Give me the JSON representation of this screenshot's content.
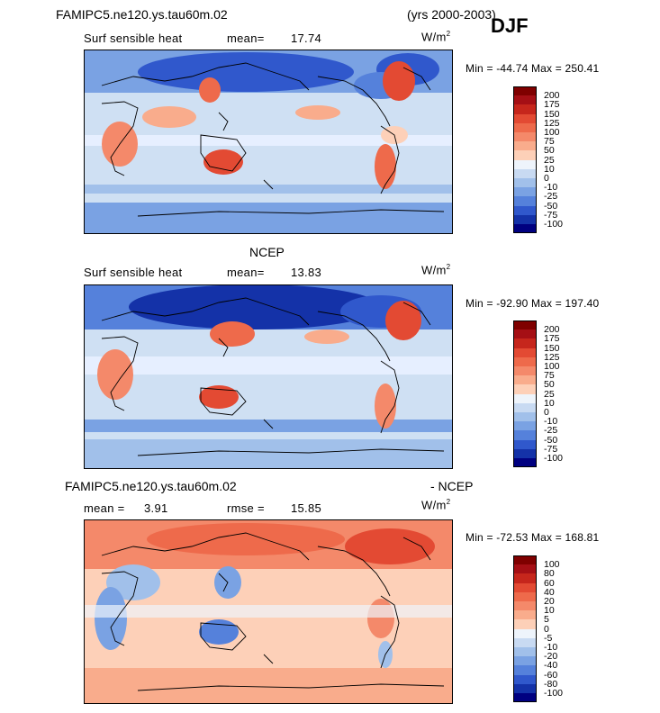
{
  "header": {
    "title_left": "FAMIPC5.ne120.ys.tau60m.02",
    "title_right": "(yrs 2000-2003)",
    "season": "DJF"
  },
  "panels": [
    {
      "id": "model",
      "top_title": "",
      "subtitle_left": "Surf sensible heat",
      "stat1_label": "mean=",
      "stat1_value": "17.74",
      "stat2_label": "",
      "stat2_value": "",
      "units_base": "W/m",
      "units_exp": "2",
      "minmax": "Min = -44.74  Max = 250.41",
      "colorbar_labels": [
        "200",
        "175",
        "150",
        "125",
        "100",
        "75",
        "50",
        "25",
        "10",
        "0",
        "-10",
        "-25",
        "-50",
        "-75",
        "-100"
      ],
      "colorbar_colors": [
        "#7f0000",
        "#a50f15",
        "#c6261c",
        "#e34a33",
        "#ee6a4b",
        "#f4896a",
        "#f9ac8c",
        "#fdd0b8",
        "#eef4fb",
        "#c8daf2",
        "#a1c0ea",
        "#7aa2e3",
        "#5581db",
        "#3058cc",
        "#1432a8",
        "#000080"
      ]
    },
    {
      "id": "obs",
      "top_title": "NCEP",
      "subtitle_left": "Surf sensible heat",
      "stat1_label": "mean=",
      "stat1_value": "13.83",
      "stat2_label": "",
      "stat2_value": "",
      "units_base": "W/m",
      "units_exp": "2",
      "minmax": "Min = -92.90  Max = 197.40",
      "colorbar_labels": [
        "200",
        "175",
        "150",
        "125",
        "100",
        "75",
        "50",
        "25",
        "10",
        "0",
        "-10",
        "-25",
        "-50",
        "-75",
        "-100"
      ],
      "colorbar_colors": [
        "#7f0000",
        "#a50f15",
        "#c6261c",
        "#e34a33",
        "#ee6a4b",
        "#f4896a",
        "#f9ac8c",
        "#fdd0b8",
        "#eef4fb",
        "#c8daf2",
        "#a1c0ea",
        "#7aa2e3",
        "#5581db",
        "#3058cc",
        "#1432a8",
        "#000080"
      ]
    },
    {
      "id": "diff",
      "top_title_left": "FAMIPC5.ne120.ys.tau60m.02",
      "top_title_right": "- NCEP",
      "subtitle_left": "",
      "stat1_label": "mean =",
      "stat1_value": "3.91",
      "stat2_label": "rmse =",
      "stat2_value": "15.85",
      "units_base": "W/m",
      "units_exp": "2",
      "minmax": "Min = -72.53  Max = 168.81",
      "colorbar_labels": [
        "100",
        "80",
        "60",
        "40",
        "20",
        "10",
        "5",
        "0",
        "-5",
        "-10",
        "-20",
        "-40",
        "-60",
        "-80",
        "-100"
      ],
      "colorbar_colors": [
        "#7f0000",
        "#a50f15",
        "#c6261c",
        "#e34a33",
        "#ee6a4b",
        "#f4896a",
        "#f9ac8c",
        "#fdd0b8",
        "#eef4fb",
        "#c8daf2",
        "#a1c0ea",
        "#7aa2e3",
        "#5581db",
        "#3058cc",
        "#1432a8",
        "#000080"
      ]
    }
  ],
  "chart_data": [
    {
      "type": "heatmap",
      "title": "Surf sensible heat",
      "subtitle": "FAMIPC5.ne120.ys.tau60m.02 (yrs 2000-2003) DJF",
      "mean": 17.74,
      "min": -44.74,
      "max": 250.41,
      "units": "W/m2",
      "levels": [
        -100,
        -75,
        -50,
        -25,
        -10,
        0,
        10,
        25,
        50,
        75,
        100,
        125,
        150,
        175,
        200
      ]
    },
    {
      "type": "heatmap",
      "title": "Surf sensible heat",
      "subtitle": "NCEP",
      "mean": 13.83,
      "min": -92.9,
      "max": 197.4,
      "units": "W/m2",
      "levels": [
        -100,
        -75,
        -50,
        -25,
        -10,
        0,
        10,
        25,
        50,
        75,
        100,
        125,
        150,
        175,
        200
      ]
    },
    {
      "type": "heatmap",
      "title": "FAMIPC5.ne120.ys.tau60m.02 - NCEP",
      "mean": 3.91,
      "rmse": 15.85,
      "min": -72.53,
      "max": 168.81,
      "units": "W/m2",
      "levels": [
        -100,
        -80,
        -60,
        -40,
        -20,
        -10,
        -5,
        0,
        5,
        10,
        20,
        40,
        60,
        80,
        100
      ]
    }
  ]
}
